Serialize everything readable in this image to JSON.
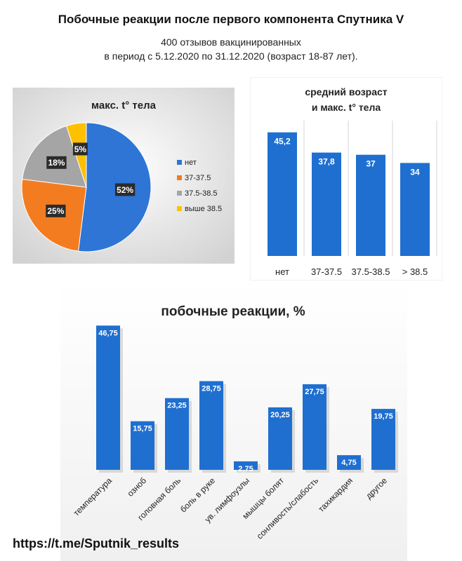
{
  "header": {
    "title": "Побочные реакции после первого компонента Спутника V",
    "subtitle_line1": "400 отзывов вакцинированных",
    "subtitle_line2": "в период с 5.12.2020 по 31.12.2020 (возраст 18-87 лет)."
  },
  "footer": {
    "link": "https://t.me/Sputnik_results"
  },
  "chart_data": [
    {
      "type": "pie",
      "title": "макс. t°  тела",
      "categories": [
        "нет",
        "37-37.5",
        "37.5-38.5",
        "выше 38.5"
      ],
      "values": [
        52,
        25,
        18,
        5
      ],
      "labels": [
        "52%",
        "25%",
        "18%",
        "5%"
      ],
      "colors": [
        "#2e75d6",
        "#f47c20",
        "#a5a5a5",
        "#ffc000"
      ],
      "legend": "right"
    },
    {
      "type": "bar",
      "title_line1": "средний возраст",
      "title_line2": "и макс. t° тела",
      "categories": [
        "нет",
        "37-37.5",
        "37.5-38.5",
        "> 38.5"
      ],
      "values": [
        45.2,
        37.8,
        37,
        34
      ],
      "labels": [
        "45,2",
        "37,8",
        "37",
        "34"
      ],
      "color": "#1f6fd0"
    },
    {
      "type": "bar",
      "title": "побочные реакции, %",
      "categories": [
        "температура",
        "озноб",
        "головная боль",
        "боль в руке",
        "ув. лимфоузлы",
        "мышцы болят",
        "сонливость/слабость",
        "тахикардия",
        "другое"
      ],
      "values": [
        46.75,
        15.75,
        23.25,
        28.75,
        2.75,
        20.25,
        27.75,
        4.75,
        19.75
      ],
      "labels": [
        "46,75",
        "15,75",
        "23,25",
        "28,75",
        "2,75",
        "20,25",
        "27,75",
        "4,75",
        "19,75"
      ],
      "color": "#1f6fd0"
    }
  ]
}
